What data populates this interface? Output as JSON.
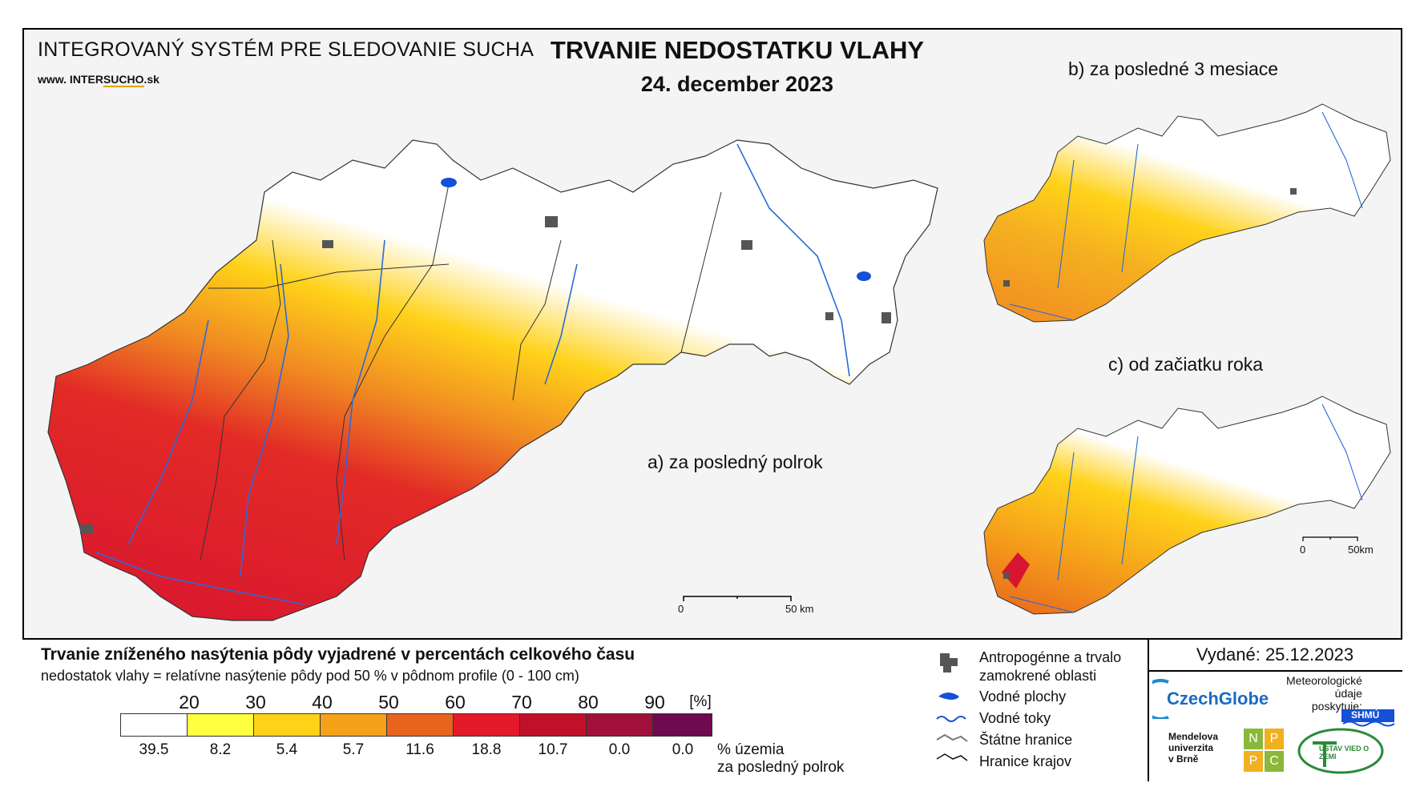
{
  "header": {
    "system_name": "INTEGROVANÝ SYSTÉM PRE SLEDOVANIE SUCHA",
    "url_prefix": "www. INTER",
    "url_brand": "SUCHO",
    "url_suffix": ".sk",
    "title": "TRVANIE NEDOSTATKU VLAHY",
    "date": "24. december 2023"
  },
  "maps": {
    "a_label": "a) za posledný polrok",
    "b_label": "b) za posledné 3 mesiace",
    "c_label": "c) od začiatku roka",
    "scale_main": {
      "start": "0",
      "end": "50 km"
    },
    "scale_small": {
      "start": "0",
      "end": "50km"
    }
  },
  "legend": {
    "title": "Trvanie zníženého nasýtenia pôdy vyjadrené v percentách celkového času",
    "subtitle": "nedostatok vlahy = relatívne nasýtenie pôdy pod 50 % v pôdnom profile (0 - 100 cm)",
    "ticks": [
      "20",
      "30",
      "40",
      "50",
      "60",
      "70",
      "80",
      "90",
      "[%]"
    ],
    "colors": [
      "#ffffff",
      "#ffff40",
      "#ffd21a",
      "#f5a21a",
      "#e8641e",
      "#e41a2a",
      "#c0102a",
      "#a0103a",
      "#6e0a4e"
    ],
    "percentages": [
      "39.5",
      "8.2",
      "5.4",
      "5.7",
      "11.6",
      "18.8",
      "10.7",
      "0.0",
      "0.0"
    ],
    "pct_note_line1": "% územia",
    "pct_note_line2": "za posledný polrok"
  },
  "key": {
    "anthropogenic_line1": "Antropogénne a trvalo",
    "anthropogenic_line2": "zamokrené oblasti",
    "water_bodies": "Vodné plochy",
    "water_courses": "Vodné toky",
    "state_border": "Štátne hranice",
    "region_border": "Hranice krajov"
  },
  "issued": "Vydané: 25.12.2023",
  "logos": {
    "czechglobe": "CzechGlobe",
    "meteo_line1": "Meteorologické",
    "meteo_line2": "údaje",
    "meteo_line3": "poskytuje:",
    "shmu": "SHMÚ",
    "mendel_line1": "Mendelova",
    "mendel_line2": "univerzita",
    "mendel_line3": "v Brně",
    "nppc": [
      "N",
      "P",
      "P",
      "C"
    ],
    "uvz": "ÚSTAV VIED O ZEMI"
  }
}
